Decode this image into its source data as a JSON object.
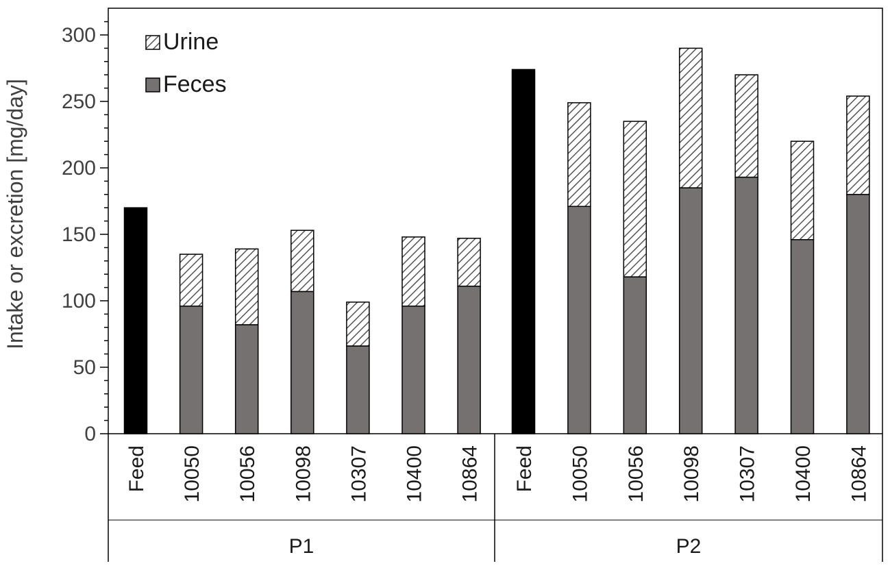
{
  "chart_data": {
    "type": "bar",
    "stacked": true,
    "ylabel": "Intake or excretion [mg/day]",
    "xlabel": "",
    "ylim": [
      0,
      320
    ],
    "yticks": [
      0,
      50,
      100,
      150,
      200,
      250,
      300
    ],
    "groups": [
      {
        "label": "P1",
        "categories": [
          "Feed",
          "10050",
          "10056",
          "10098",
          "10307",
          "10400",
          "10864"
        ]
      },
      {
        "label": "P2",
        "categories": [
          "Feed",
          "10050",
          "10056",
          "10098",
          "10307",
          "10400",
          "10864"
        ]
      }
    ],
    "series": [
      {
        "name": "Feed",
        "color": "#000000",
        "values": [
          170,
          null,
          null,
          null,
          null,
          null,
          null,
          274,
          null,
          null,
          null,
          null,
          null,
          null
        ]
      },
      {
        "name": "Feces",
        "color": "#767171",
        "values": [
          null,
          96,
          82,
          107,
          66,
          96,
          111,
          null,
          171,
          118,
          185,
          193,
          146,
          180
        ]
      },
      {
        "name": "Urine",
        "color": "#ffffff",
        "pattern": "diagonal-hatch",
        "values": [
          null,
          39,
          57,
          46,
          33,
          52,
          36,
          null,
          78,
          117,
          105,
          77,
          74,
          74
        ]
      }
    ],
    "legend": {
      "position": "top-left",
      "entries": [
        {
          "label": "Urine",
          "pattern": "diagonal-hatch"
        },
        {
          "label": "Feces",
          "color": "#767171"
        }
      ]
    },
    "grid": false
  }
}
